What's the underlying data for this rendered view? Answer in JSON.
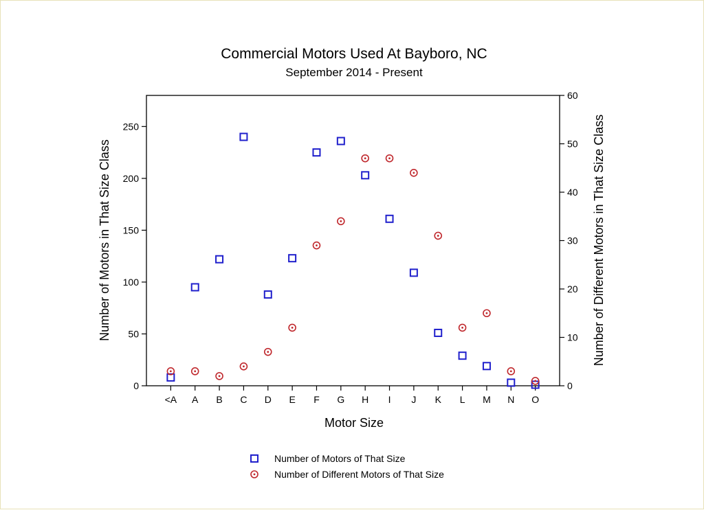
{
  "chart_data": {
    "type": "scatter",
    "title": "Commercial Motors Used At Bayboro, NC",
    "subtitle": "September 2014 - Present",
    "xlabel": "Motor Size",
    "ylabel": "Number of Motors in That Size Class",
    "y2label": "Number of Different Motors in That Size Class",
    "categories": [
      "<A",
      "A",
      "B",
      "C",
      "D",
      "E",
      "F",
      "G",
      "H",
      "I",
      "J",
      "K",
      "L",
      "M",
      "N",
      "O"
    ],
    "ylim": [
      0,
      280
    ],
    "yticks": [
      0,
      50,
      100,
      150,
      200,
      250
    ],
    "y2lim": [
      0,
      60
    ],
    "y2ticks": [
      0,
      10,
      20,
      30,
      40,
      50,
      60
    ],
    "grid": false,
    "legend_position": "bottom",
    "series": [
      {
        "name": "Number of Motors of That Size",
        "axis": "left",
        "marker": "square",
        "color": "#1f1fcc",
        "values": [
          8,
          95,
          122,
          240,
          88,
          123,
          225,
          236,
          203,
          161,
          109,
          51,
          29,
          19,
          3,
          1
        ]
      },
      {
        "name": "Number of Different Motors of That Size",
        "axis": "right",
        "marker": "circle-dot",
        "color": "#c0282d",
        "values": [
          3,
          3,
          2,
          4,
          7,
          12,
          29,
          34,
          47,
          47,
          44,
          31,
          12,
          15,
          3,
          1
        ]
      }
    ]
  }
}
